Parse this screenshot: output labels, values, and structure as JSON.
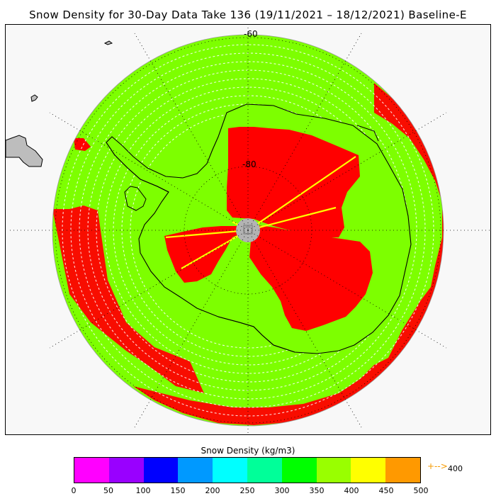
{
  "title": "Snow Density for 30-Day Data Take 136 (19/11/2021 – 18/12/2021) Baseline-E",
  "map": {
    "lat_labels": [
      "-60",
      "-80"
    ],
    "colors": {
      "ocean": "#7dff00",
      "swath_red": "#ff0000",
      "stripe": "#ffffff",
      "pole_hole": "#b3b3b3",
      "land": "#bdbdbd",
      "coast": "#000000",
      "yellow_track": "#ffff00"
    }
  },
  "colorbar": {
    "title": "Snow Density (kg/m3)",
    "ticks": [
      "0",
      "50",
      "100",
      "150",
      "200",
      "250",
      "300",
      "350",
      "400",
      "450",
      "500"
    ],
    "colors": [
      "#ff00ff",
      "#9900ff",
      "#0000ff",
      "#0099ff",
      "#00ffff",
      "#00ff99",
      "#00ff00",
      "#99ff00",
      "#ffff00",
      "#ff9900"
    ],
    "overflow_arrow": "+-->",
    "overflow_value": "400"
  }
}
